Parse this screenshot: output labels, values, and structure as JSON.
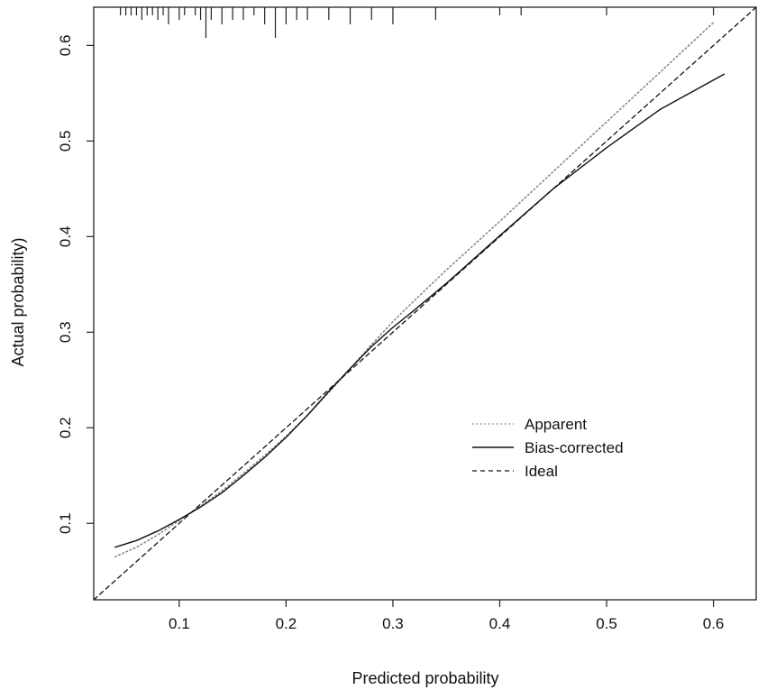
{
  "chart_data": {
    "type": "line",
    "title": "",
    "xlabel": "Predicted probability",
    "ylabel": "Actual probability)",
    "xlim": [
      0.02,
      0.64
    ],
    "ylim": [
      0.02,
      0.64
    ],
    "x_ticks": [
      0.1,
      0.2,
      0.3,
      0.4,
      0.5,
      0.6
    ],
    "x_tick_labels": [
      "0.1",
      "0.2",
      "0.3",
      "0.4",
      "0.5",
      "0.6"
    ],
    "y_ticks": [
      0.1,
      0.2,
      0.3,
      0.4,
      0.5,
      0.6
    ],
    "y_tick_labels": [
      "0.1",
      "0.2",
      "0.3",
      "0.4",
      "0.5",
      "0.6"
    ],
    "grid": false,
    "legend_position": "right-center",
    "series": [
      {
        "name": "Apparent",
        "style": "dotted",
        "color": "#888888",
        "x": [
          0.04,
          0.06,
          0.08,
          0.1,
          0.12,
          0.14,
          0.16,
          0.18,
          0.2,
          0.22,
          0.24,
          0.26,
          0.28,
          0.3,
          0.32,
          0.35,
          0.4,
          0.45,
          0.5,
          0.55,
          0.6
        ],
        "y": [
          0.065,
          0.075,
          0.088,
          0.103,
          0.118,
          0.134,
          0.152,
          0.171,
          0.191,
          0.213,
          0.237,
          0.262,
          0.287,
          0.311,
          0.333,
          0.365,
          0.416,
          0.468,
          0.52,
          0.572,
          0.624
        ]
      },
      {
        "name": "Bias-corrected",
        "style": "solid",
        "color": "#111111",
        "x": [
          0.04,
          0.06,
          0.08,
          0.1,
          0.12,
          0.14,
          0.16,
          0.18,
          0.2,
          0.22,
          0.24,
          0.26,
          0.28,
          0.3,
          0.32,
          0.35,
          0.4,
          0.45,
          0.5,
          0.55,
          0.61
        ],
        "y": [
          0.075,
          0.082,
          0.092,
          0.104,
          0.117,
          0.132,
          0.15,
          0.169,
          0.19,
          0.213,
          0.238,
          0.262,
          0.285,
          0.305,
          0.323,
          0.351,
          0.401,
          0.45,
          0.493,
          0.533,
          0.57
        ]
      },
      {
        "name": "Ideal",
        "style": "dashed",
        "color": "#111111",
        "x": [
          0.02,
          0.64
        ],
        "y": [
          0.02,
          0.64
        ]
      }
    ],
    "rug": {
      "x": [
        0.045,
        0.05,
        0.055,
        0.06,
        0.065,
        0.07,
        0.075,
        0.08,
        0.085,
        0.09,
        0.1,
        0.105,
        0.115,
        0.12,
        0.125,
        0.13,
        0.14,
        0.15,
        0.16,
        0.17,
        0.18,
        0.19,
        0.2,
        0.21,
        0.22,
        0.24,
        0.26,
        0.28,
        0.3,
        0.34,
        0.4,
        0.42,
        0.5,
        0.6
      ],
      "weights": [
        1,
        1,
        1,
        1,
        2,
        1,
        1,
        2,
        1,
        3,
        2,
        1,
        1,
        2,
        6,
        2,
        3,
        2,
        2,
        1,
        3,
        6,
        3,
        2,
        2,
        2,
        3,
        2,
        3,
        2,
        1,
        1,
        1,
        1
      ]
    }
  }
}
